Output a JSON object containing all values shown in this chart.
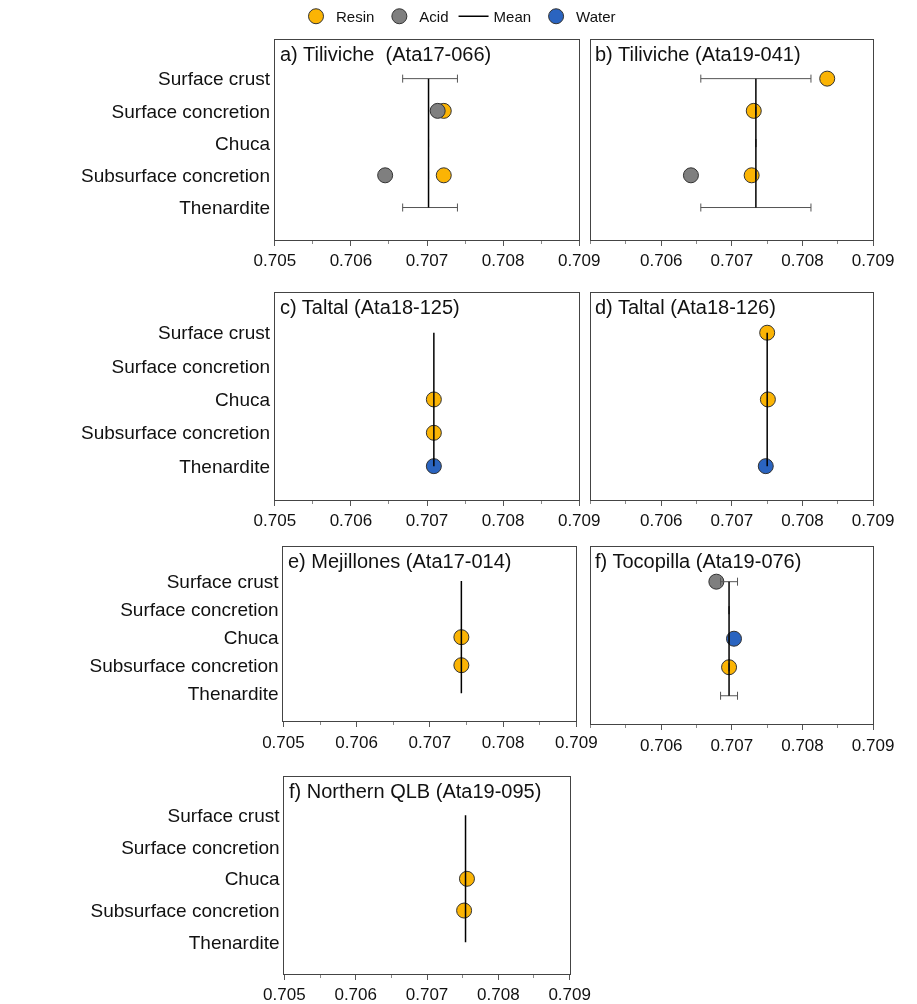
{
  "chart_data": [
    {
      "type": "scatter",
      "orientation": "horizontal",
      "title": "a) Tiliviche  (Ata17-066)",
      "categories": [
        "Surface crust",
        "Surface concretion",
        "Chuca",
        "Subsurface concretion",
        "Thenardite"
      ],
      "xlim": [
        0.705,
        0.709
      ],
      "xticks": [
        0.705,
        0.706,
        0.707,
        0.708,
        0.709
      ],
      "legend": "top",
      "marker": "circle",
      "series": [
        {
          "name": "Resin",
          "color": "#fbb404",
          "values": [
            null,
            0.70722,
            null,
            0.70722,
            null
          ]
        },
        {
          "name": "Acid",
          "color": "#7f7f7f",
          "values": [
            null,
            0.70714,
            null,
            0.70645,
            null
          ]
        },
        {
          "name": "Mean",
          "type": "line",
          "color": "#000000",
          "values": [
            0.70702,
            0.70702,
            0.70702,
            0.70702,
            0.70702
          ],
          "marker": "none",
          "errors": [
            [
              0.70668,
              0.7074
            ],
            null,
            null,
            null,
            [
              0.70668,
              0.7074
            ]
          ]
        }
      ]
    },
    {
      "type": "scatter",
      "orientation": "horizontal",
      "title": "b) Tiliviche (Ata19-041)",
      "categories": [
        "Surface crust",
        "Surface concretion",
        "Chuca",
        "Subsurface concretion",
        "Thenardite"
      ],
      "xlim": [
        0.705,
        0.709
      ],
      "xticks": [
        0.706,
        0.707,
        0.708,
        0.709
      ],
      "tick_labels": "x",
      "marker": "circle",
      "series": [
        {
          "name": "Resin",
          "color": "#fbb404",
          "values": [
            0.70835,
            0.70731,
            null,
            0.70728,
            null
          ]
        },
        {
          "name": "Acid",
          "color": "#7f7f7f",
          "values": [
            null,
            null,
            null,
            0.70642,
            null
          ]
        },
        {
          "name": "Mean",
          "type": "line",
          "color": "#000000",
          "values": [
            0.70734,
            0.70734,
            0.70734,
            0.70734,
            0.70734
          ],
          "marker": "none",
          "errors": [
            [
              0.70656,
              0.70812
            ],
            null,
            null,
            null,
            [
              0.70656,
              0.70812
            ]
          ]
        }
      ]
    },
    {
      "type": "scatter",
      "orientation": "horizontal",
      "title": "c) Taltal (Ata18-125)",
      "categories": [
        "Surface crust",
        "Surface concretion",
        "Chuca",
        "Subsurface concretion",
        "Thenardite"
      ],
      "xlim": [
        0.705,
        0.709
      ],
      "xticks": [
        0.705,
        0.706,
        0.707,
        0.708,
        0.709
      ],
      "marker": "circle",
      "series": [
        {
          "name": "Resin",
          "color": "#fbb404",
          "values": [
            null,
            null,
            0.70709,
            0.70709,
            null
          ]
        },
        {
          "name": "Water",
          "color": "#2a64c0",
          "values": [
            null,
            null,
            null,
            null,
            0.70709
          ]
        },
        {
          "name": "Mean",
          "type": "line",
          "color": "#000000",
          "values": [
            0.70709,
            0.70709,
            0.70709,
            0.70709,
            0.70709
          ],
          "marker": "none"
        }
      ]
    },
    {
      "type": "scatter",
      "orientation": "horizontal",
      "title": "d) Taltal (Ata18-126)",
      "categories": [
        "Surface crust",
        "Surface concretion",
        "Chuca",
        "Subsurface concretion",
        "Thenardite"
      ],
      "xlim": [
        0.705,
        0.709
      ],
      "xticks": [
        0.706,
        0.707,
        0.708,
        0.709
      ],
      "tick_labels": "x",
      "marker": "circle",
      "series": [
        {
          "name": "Resin",
          "color": "#fbb404",
          "values": [
            0.7075,
            null,
            0.70751,
            null,
            null
          ]
        },
        {
          "name": "Water",
          "color": "#2a64c0",
          "values": [
            null,
            null,
            null,
            null,
            0.70748
          ]
        },
        {
          "name": "Mean",
          "type": "line",
          "color": "#000000",
          "values": [
            0.7075,
            0.7075,
            0.7075,
            0.7075,
            0.7075
          ],
          "marker": "none"
        }
      ]
    },
    {
      "type": "scatter",
      "orientation": "horizontal",
      "title": "e) Mejillones (Ata17-014)",
      "categories": [
        "Surface crust",
        "Surface concretion",
        "Chuca",
        "Subsurface concretion",
        "Thenardite"
      ],
      "xlim": [
        0.705,
        0.709
      ],
      "xticks": [
        0.705,
        0.706,
        0.707,
        0.708,
        0.709
      ],
      "marker": "circle",
      "series": [
        {
          "name": "Resin",
          "color": "#fbb404",
          "values": [
            null,
            null,
            0.70743,
            0.70743,
            null
          ]
        },
        {
          "name": "Mean",
          "type": "line",
          "color": "#000000",
          "values": [
            0.70743,
            0.70743,
            0.70743,
            0.70743,
            0.70743
          ],
          "marker": "none"
        }
      ]
    },
    {
      "type": "scatter",
      "orientation": "horizontal",
      "title": "f) Tocopilla (Ata19-076)",
      "categories": [
        "Surface crust",
        "Surface concretion",
        "Chuca",
        "Subsurface concretion",
        "Thenardite"
      ],
      "xlim": [
        0.705,
        0.709
      ],
      "xticks": [
        0.706,
        0.707,
        0.708,
        0.709
      ],
      "tick_labels": "x",
      "marker": "circle",
      "series": [
        {
          "name": "Resin",
          "color": "#fbb404",
          "values": [
            null,
            null,
            null,
            0.70696,
            null
          ]
        },
        {
          "name": "Acid",
          "color": "#7f7f7f",
          "values": [
            0.70678,
            null,
            null,
            null,
            null
          ]
        },
        {
          "name": "Water",
          "color": "#2a64c0",
          "values": [
            null,
            null,
            0.70703,
            null,
            null
          ]
        },
        {
          "name": "Mean",
          "type": "line",
          "color": "#000000",
          "values": [
            0.70696,
            0.70696,
            0.70696,
            0.70696,
            0.70696
          ],
          "marker": "none",
          "errors": [
            [
              0.70684,
              0.70708
            ],
            null,
            null,
            null,
            [
              0.70684,
              0.70708
            ]
          ]
        }
      ]
    },
    {
      "type": "scatter",
      "orientation": "horizontal",
      "title": "f) Northern QLB (Ata19-095)",
      "categories": [
        "Surface crust",
        "Surface concretion",
        "Chuca",
        "Subsurface concretion",
        "Thenardite"
      ],
      "xlim": [
        0.705,
        0.709
      ],
      "xticks": [
        0.705,
        0.706,
        0.707,
        0.708,
        0.709
      ],
      "marker": "circle",
      "series": [
        {
          "name": "Resin",
          "color": "#fbb404",
          "values": [
            null,
            null,
            0.70756,
            0.70752,
            null
          ]
        },
        {
          "name": "Mean",
          "type": "line",
          "color": "#000000",
          "values": [
            0.70754,
            0.70754,
            0.70754,
            0.70754,
            0.70754
          ],
          "marker": "none"
        }
      ]
    }
  ]
}
